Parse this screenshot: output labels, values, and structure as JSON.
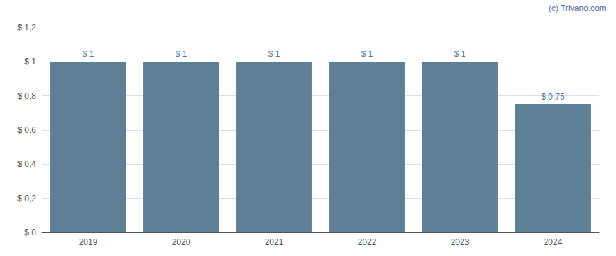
{
  "chart_data": {
    "type": "bar",
    "categories": [
      "2019",
      "2020",
      "2021",
      "2022",
      "2023",
      "2024"
    ],
    "values": [
      1.0,
      1.0,
      1.0,
      1.0,
      1.0,
      0.75
    ],
    "value_labels": [
      "$ 1",
      "$ 1",
      "$ 1",
      "$ 1",
      "$ 1",
      "$ 0,75"
    ],
    "data_labels": true,
    "color": "#5f7f96",
    "ylim": [
      0,
      1.2
    ],
    "yticks": [
      {
        "value": 0,
        "label": "$ 0"
      },
      {
        "value": 0.2,
        "label": "$ 0,2"
      },
      {
        "value": 0.4,
        "label": "$ 0,4"
      },
      {
        "value": 0.6,
        "label": "$ 0,6"
      },
      {
        "value": 0.8,
        "label": "$ 0,8"
      },
      {
        "value": 1.0,
        "label": "$ 1"
      },
      {
        "value": 1.2,
        "label": "$ 1,2"
      }
    ],
    "grid": true,
    "annotations": [
      "(c) Trivano.com"
    ]
  }
}
